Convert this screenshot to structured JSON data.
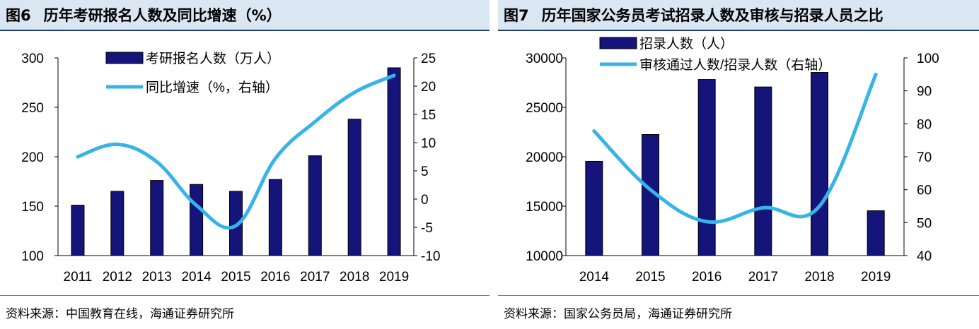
{
  "panels": [
    {
      "figure_no": "图6",
      "title": "历年考研报名人数及同比增速（%）",
      "source": "资料来源：中国教育在线，海通证券研究所"
    },
    {
      "figure_no": "图7",
      "title": "历年国家公务员考试招录人数及审核与招录人员之比",
      "source": "资料来源：国家公务员局，海通证券研究所"
    }
  ],
  "colors": {
    "bar": "#14147a",
    "line": "#36b4ea",
    "title_bg": "#dbe6f3",
    "accent": "#1f3f7a"
  },
  "chart_data": [
    {
      "type": "bar+line",
      "categories": [
        "2011",
        "2012",
        "2013",
        "2014",
        "2015",
        "2016",
        "2017",
        "2018",
        "2019"
      ],
      "series": [
        {
          "name": "考研报名人数（万人）",
          "type": "bar",
          "axis": "left",
          "values": [
            151,
            165,
            176,
            172,
            165,
            177,
            201,
            238,
            290
          ]
        },
        {
          "name": "同比增速（%，右轴）",
          "type": "line",
          "axis": "right",
          "values": [
            7.5,
            9.7,
            6.6,
            -1.1,
            -4.7,
            7.2,
            13.7,
            18.9,
            21.9
          ]
        }
      ],
      "left_axis": {
        "min": 100,
        "max": 300,
        "ticks": [
          "100",
          "150",
          "200",
          "250",
          "300"
        ]
      },
      "right_axis": {
        "min": -10,
        "max": 25,
        "ticks": [
          "-10",
          "-5",
          "0",
          "5",
          "10",
          "15",
          "20",
          "25"
        ]
      }
    },
    {
      "type": "bar+line",
      "categories": [
        "2014",
        "2015",
        "2016",
        "2017",
        "2018",
        "2019"
      ],
      "series": [
        {
          "name": "招录人数（人）",
          "type": "bar",
          "axis": "left",
          "values": [
            19538,
            22248,
            27817,
            27061,
            28533,
            14537
          ]
        },
        {
          "name": "审核通过人数/招录人数（右轴）",
          "type": "line",
          "axis": "right",
          "values": [
            77.8,
            60,
            50.3,
            54.5,
            55,
            95
          ]
        }
      ],
      "left_axis": {
        "min": 10000,
        "max": 30000,
        "ticks": [
          "10000",
          "15000",
          "20000",
          "25000",
          "30000"
        ]
      },
      "right_axis": {
        "min": 40,
        "max": 100,
        "ticks": [
          "40",
          "50",
          "60",
          "70",
          "80",
          "90",
          "100"
        ]
      }
    }
  ]
}
